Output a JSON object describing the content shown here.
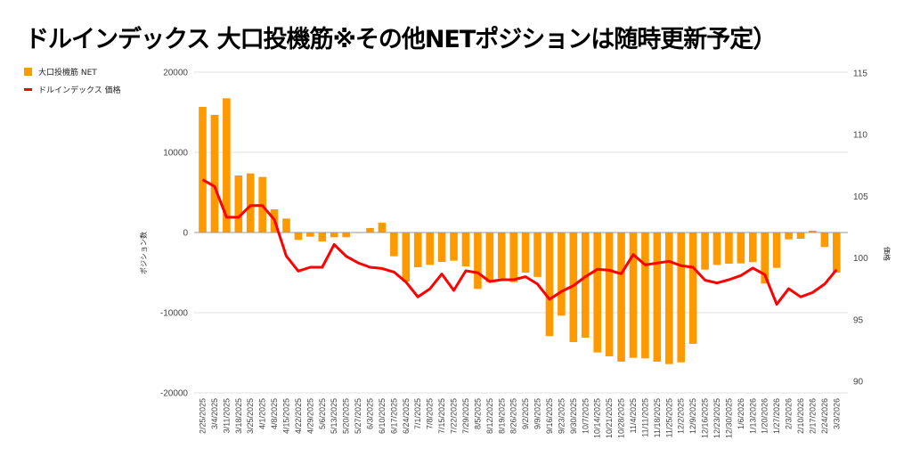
{
  "title": "ドルインデックス 大口投機筋※その他NETポジションは随時更新予定）",
  "chart_data": {
    "type": "bar+line",
    "title": "ドルインデックス 大口投機筋※その他NETポジションは随時更新予定）",
    "legend_position": "top-left",
    "legend": [
      "大口投機筋  NET",
      "ドルインデックス 価格"
    ],
    "ylabel_left": "ポジション数",
    "ylabel_right": "価格",
    "ylim_left": [
      -20000,
      20000
    ],
    "yticks_left": [
      "20000",
      "10000",
      "0",
      "-10000",
      "-20000"
    ],
    "ylim_right": [
      90,
      115
    ],
    "yticks_right": [
      "115",
      "110",
      "105",
      "100",
      "95",
      "90"
    ],
    "grid": true,
    "colors": {
      "bar": "#ff9900",
      "line": "#ff0000",
      "grid": "#e0e0e0",
      "zero": "#999999"
    },
    "categories": [
      "2/25/2025",
      "3/4/2025",
      "3/11/2025",
      "3/18/2025",
      "3/25/2025",
      "4/1/2025",
      "4/8/2025",
      "4/15/2025",
      "4/22/2025",
      "4/29/2025",
      "5/6/2025",
      "5/13/2025",
      "5/20/2025",
      "5/27/2025",
      "6/3/2025",
      "6/10/2025",
      "6/17/2025",
      "6/24/2025",
      "7/1/2025",
      "7/8/2025",
      "7/15/2025",
      "7/22/2025",
      "7/29/2025",
      "8/5/2025",
      "8/12/2025",
      "8/19/2025",
      "8/26/2025",
      "9/2/2025",
      "9/9/2025",
      "9/16/2025",
      "9/23/2025",
      "9/30/2025",
      "10/7/2025",
      "10/14/2025",
      "10/21/2025",
      "10/28/2025",
      "11/4/2025",
      "11/11/2025",
      "11/18/2025",
      "11/25/2025",
      "12/2/2025",
      "12/9/2025",
      "12/16/2025",
      "12/23/2025",
      "12/30/2025",
      "1/6/2026",
      "1/13/2026",
      "1/20/2026",
      "1/27/2026",
      "2/3/2026",
      "2/10/2026",
      "2/17/2026",
      "2/24/2026",
      "3/3/2026"
    ],
    "series": [
      {
        "name": "大口投機筋  NET",
        "type": "bar",
        "axis": "left",
        "values": [
          15670,
          14670,
          16740,
          7110,
          7370,
          6930,
          2890,
          1740,
          -920,
          -520,
          -1110,
          -590,
          -590,
          -50,
          560,
          1220,
          -2960,
          -6110,
          -4330,
          -4040,
          -3670,
          -3520,
          -4220,
          -7040,
          -6190,
          -5740,
          -6190,
          -5000,
          -5540,
          -12920,
          -10370,
          -13670,
          -13110,
          -14960,
          -15440,
          -16110,
          -15630,
          -15700,
          -16110,
          -16410,
          -16190,
          -13890,
          -4630,
          -4040,
          -3890,
          -3850,
          -3700,
          -6370,
          -4410,
          -850,
          -780,
          220,
          -1810,
          -5000
        ]
      },
      {
        "name": "ドルインデックス 価格",
        "type": "line",
        "axis": "right",
        "values": [
          106.35,
          105.8,
          103.3,
          103.3,
          104.25,
          104.25,
          103.1,
          100.15,
          98.94,
          99.25,
          99.25,
          101.1,
          100.14,
          99.6,
          99.25,
          99.15,
          98.86,
          98.05,
          96.84,
          97.5,
          98.7,
          97.37,
          98.96,
          98.8,
          98.09,
          98.24,
          98.24,
          98.48,
          97.88,
          96.65,
          97.28,
          97.75,
          98.48,
          99.08,
          99.0,
          98.72,
          100.28,
          99.44,
          99.59,
          99.73,
          99.37,
          99.25,
          98.2,
          97.97,
          98.24,
          98.58,
          99.18,
          98.65,
          96.24,
          97.51,
          96.84,
          97.2,
          97.88,
          99.05
        ]
      }
    ]
  }
}
